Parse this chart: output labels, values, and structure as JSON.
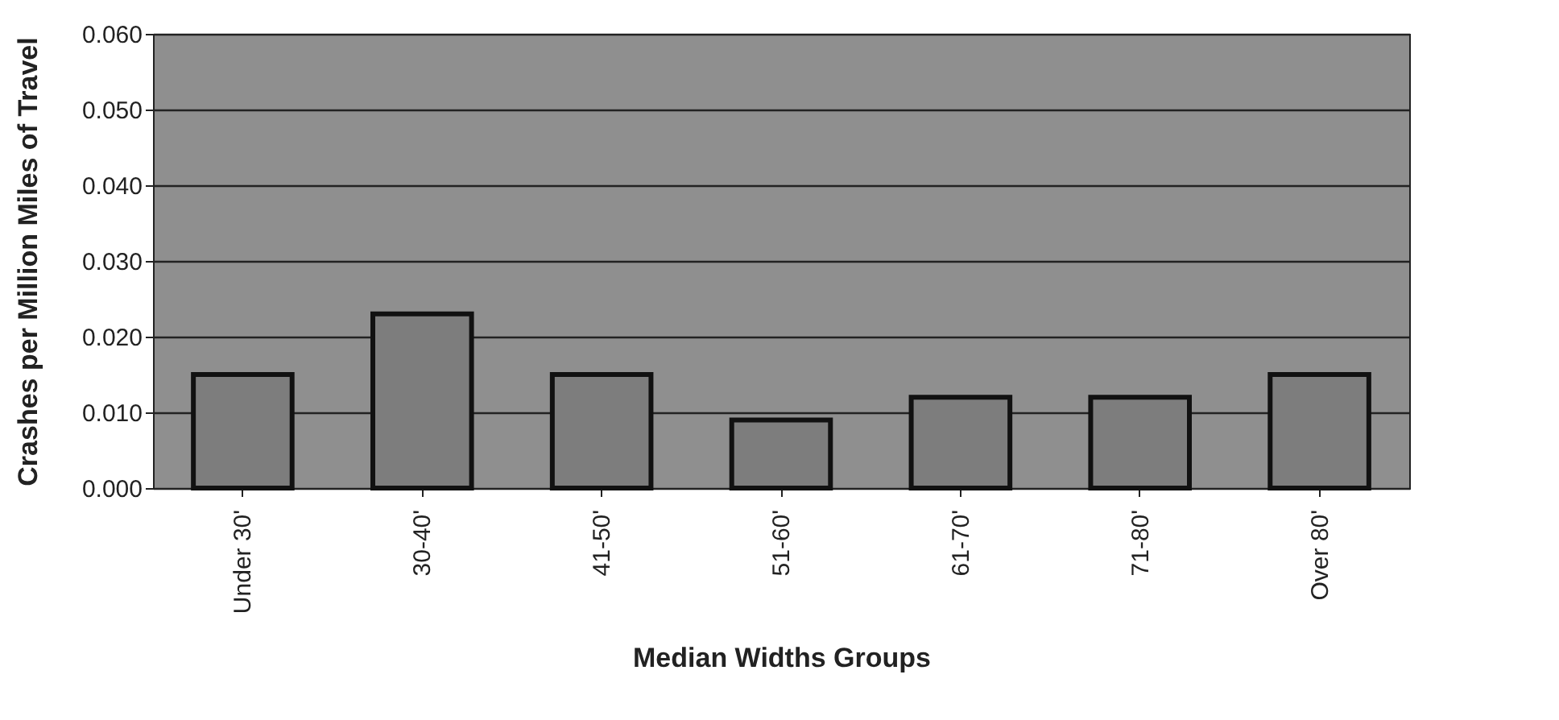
{
  "chart_data": {
    "type": "bar",
    "xlabel": "Median Widths Groups",
    "ylabel": "Crashes per Million Miles of Travel",
    "categories": [
      "Under 30'",
      "30-40'",
      "41-50'",
      "51-60'",
      "61-70'",
      "71-80'",
      "Over 80'"
    ],
    "values": [
      0.015,
      0.023,
      0.015,
      0.009,
      0.012,
      0.012,
      0.015
    ],
    "color": "#7d7d7d",
    "ylim": [
      0,
      0.06
    ],
    "yticks": [
      {
        "value": 0,
        "label": "0.000"
      },
      {
        "value": 0.01,
        "label": "0.010"
      },
      {
        "value": 0.02,
        "label": "0.020"
      },
      {
        "value": 0.03,
        "label": "0.030"
      },
      {
        "value": 0.04,
        "label": "0.040"
      },
      {
        "value": 0.05,
        "label": "0.050"
      },
      {
        "value": 0.06,
        "label": "0.060"
      }
    ],
    "grid": "y"
  }
}
